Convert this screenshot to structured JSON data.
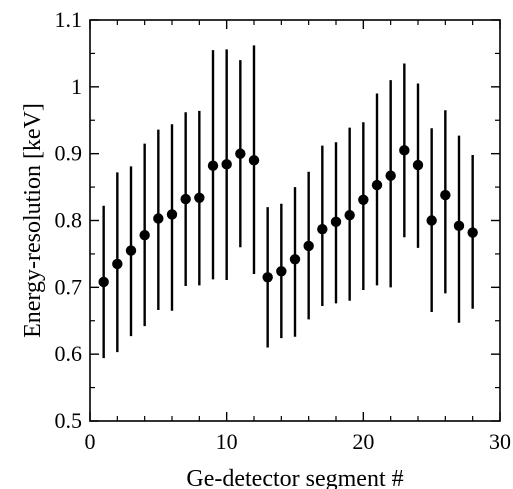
{
  "chart_data": {
    "type": "scatter",
    "xlabel": "Ge-detector segment #",
    "ylabel": "Energy-resolution [keV]",
    "xlim": [
      0,
      30
    ],
    "ylim": [
      0.5,
      1.1
    ],
    "xticks": [
      0,
      10,
      20,
      30
    ],
    "yticks": [
      0.5,
      0.6,
      0.7,
      0.8,
      0.9,
      1,
      1.1
    ],
    "xtick_labels": [
      "0",
      "10",
      "20",
      "30"
    ],
    "ytick_labels": [
      "0.5",
      "0.6",
      "0.7",
      "0.8",
      "0.9",
      "1",
      "1.1"
    ],
    "grid": false,
    "marker": "filled-circle",
    "error_bars": true,
    "series": [
      {
        "x": [
          1,
          2,
          3,
          4,
          5,
          6,
          7,
          8,
          9,
          10,
          11,
          12,
          13,
          14,
          15,
          16,
          17,
          18,
          19,
          20,
          21,
          22,
          23,
          24,
          25,
          26,
          27,
          28
        ],
        "y": [
          0.708,
          0.735,
          0.755,
          0.778,
          0.803,
          0.809,
          0.832,
          0.834,
          0.882,
          0.884,
          0.9,
          0.89,
          0.715,
          0.724,
          0.742,
          0.762,
          0.787,
          0.798,
          0.808,
          0.831,
          0.853,
          0.867,
          0.905,
          0.883,
          0.8,
          0.838,
          0.792,
          0.782
        ],
        "y_err_low": [
          0.114,
          0.132,
          0.128,
          0.136,
          0.137,
          0.144,
          0.13,
          0.131,
          0.17,
          0.173,
          0.14,
          0.17,
          0.105,
          0.1,
          0.116,
          0.11,
          0.115,
          0.122,
          0.128,
          0.135,
          0.15,
          0.167,
          0.13,
          0.124,
          0.137,
          0.147,
          0.145,
          0.114
        ],
        "y_err_high": [
          0.114,
          0.137,
          0.126,
          0.137,
          0.133,
          0.135,
          0.13,
          0.13,
          0.173,
          0.172,
          0.14,
          0.172,
          0.105,
          0.101,
          0.108,
          0.111,
          0.125,
          0.119,
          0.131,
          0.116,
          0.137,
          0.143,
          0.13,
          0.122,
          0.138,
          0.127,
          0.135,
          0.116
        ]
      }
    ]
  }
}
